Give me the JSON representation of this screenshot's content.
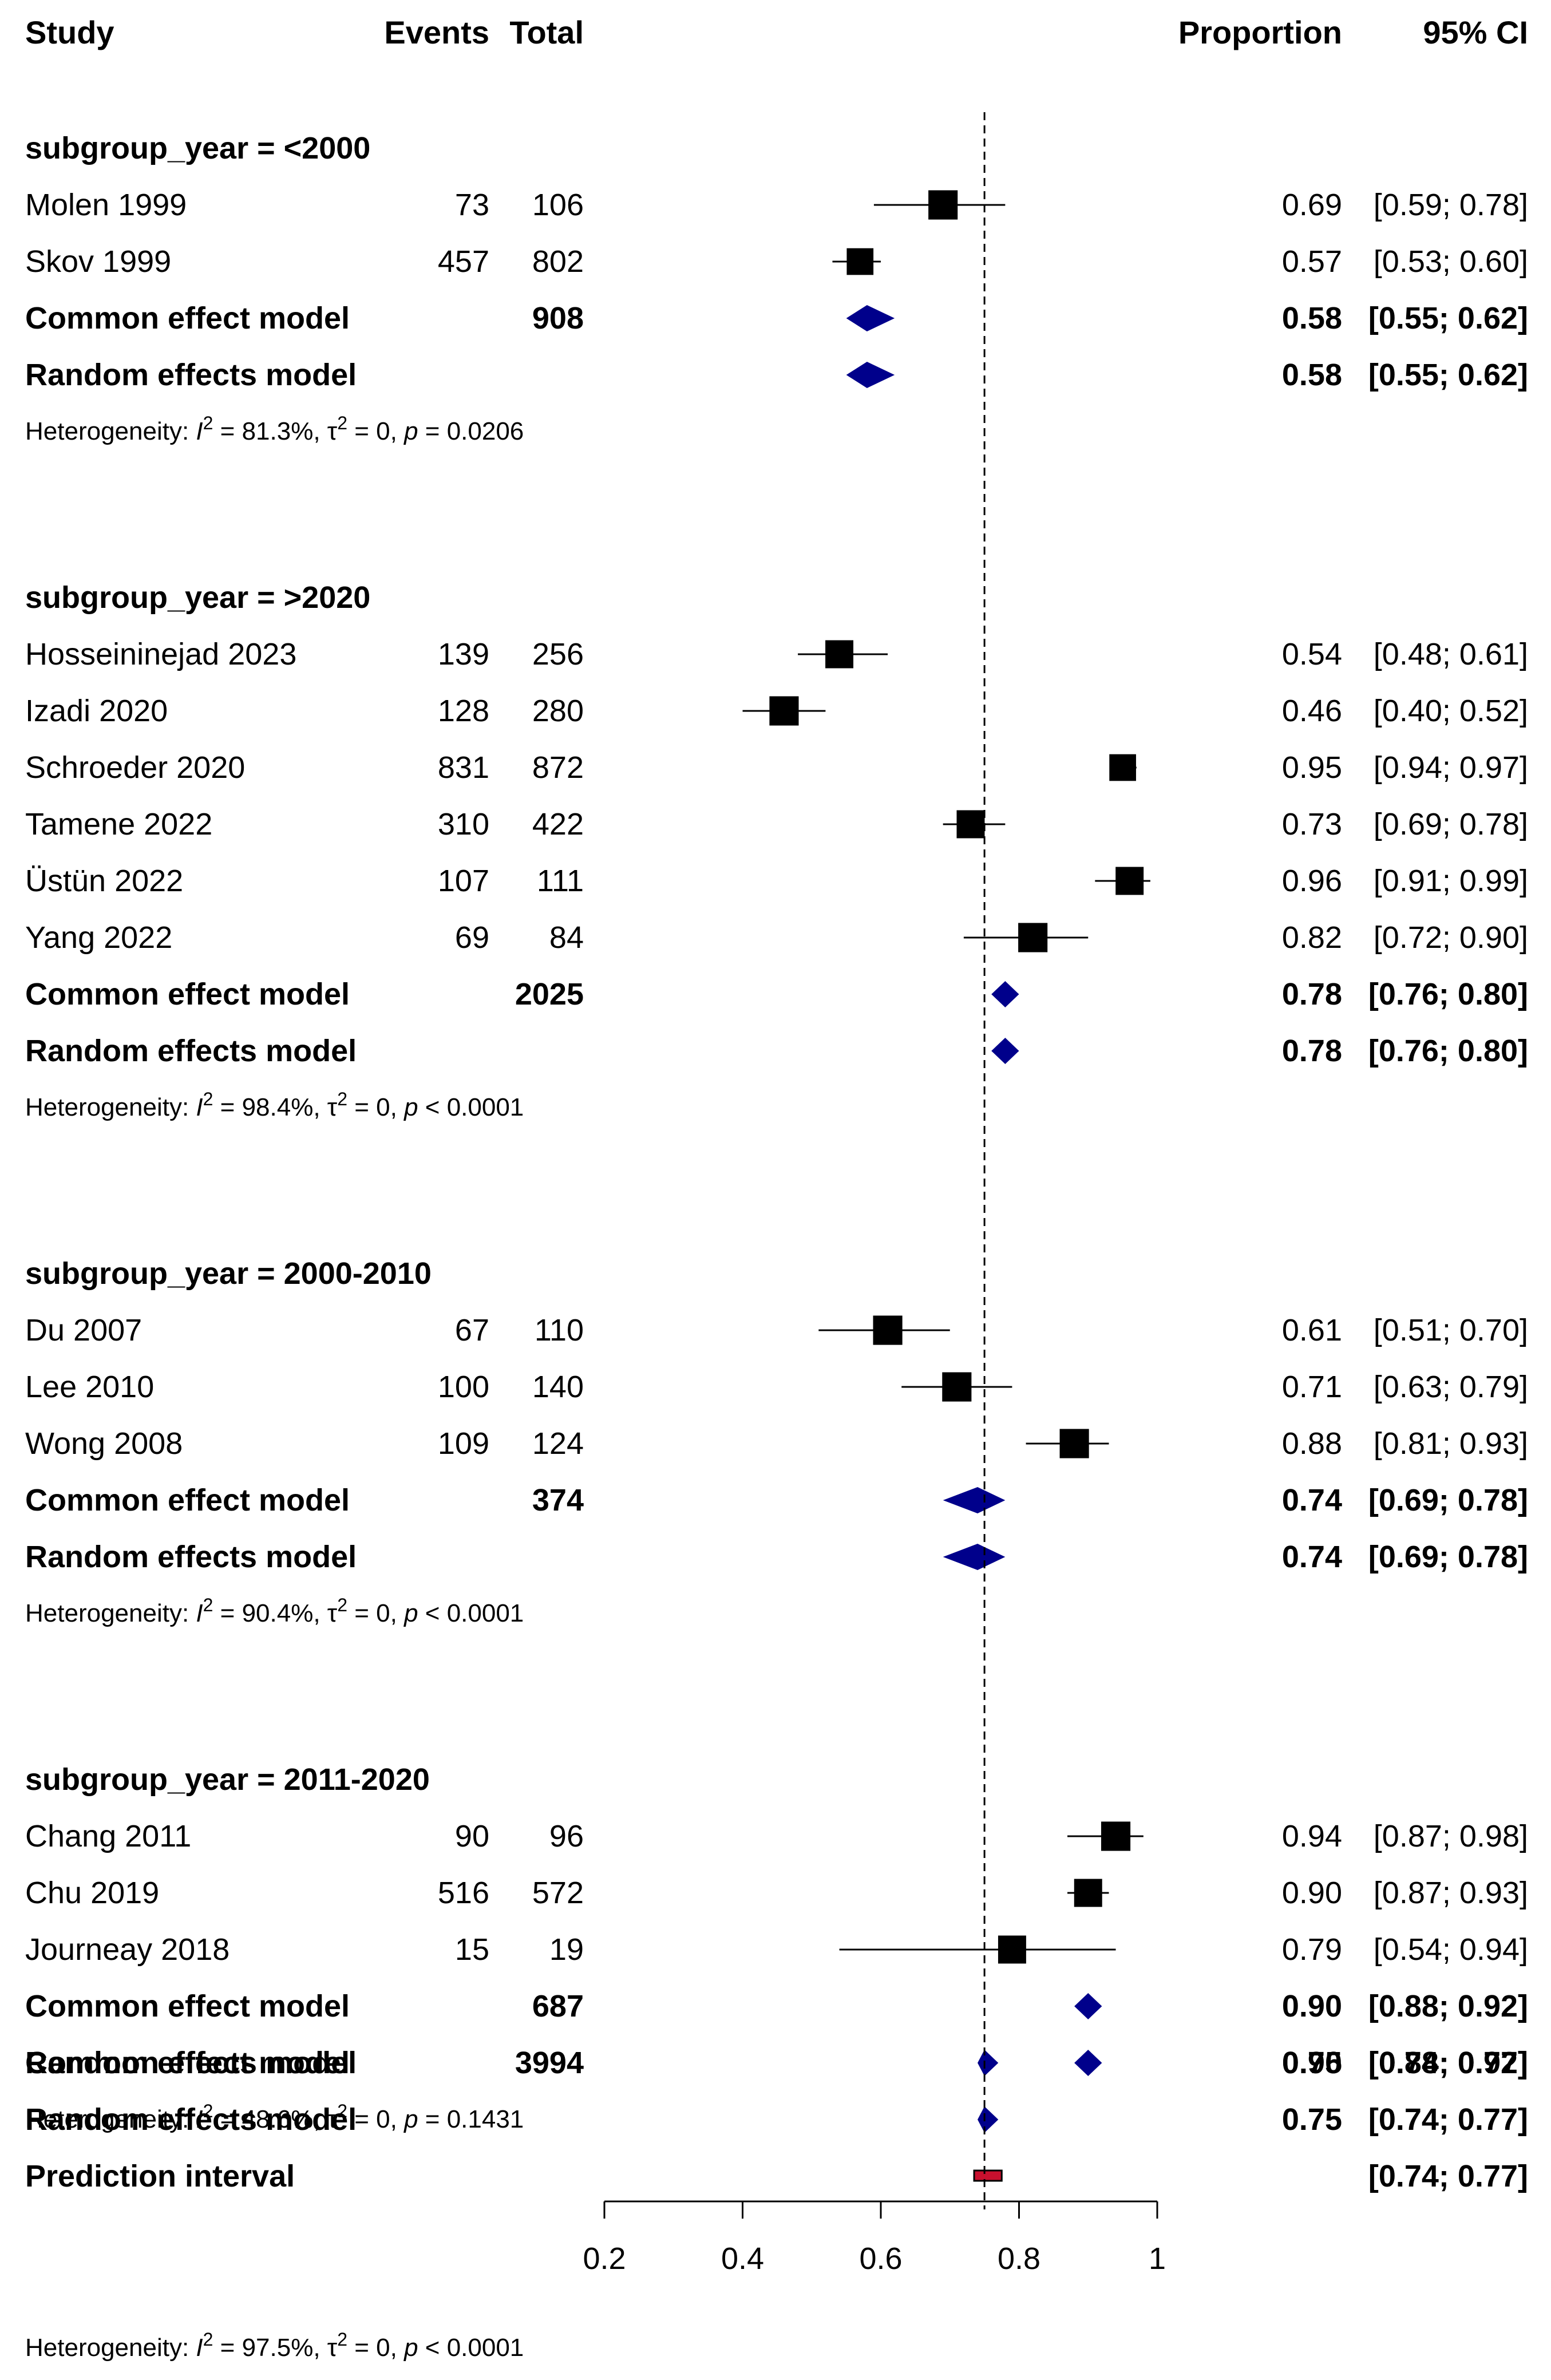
{
  "chart_data": {
    "type": "forest",
    "columns": {
      "study": "Study",
      "events": "Events",
      "total": "Total",
      "proportion": "Proportion",
      "ci": "95% CI"
    },
    "axis": {
      "min": 0.2,
      "max": 1,
      "ticks": [
        "0.2",
        "0.4",
        "0.6",
        "0.8",
        "1"
      ],
      "reference_line": 0.75
    },
    "subgroups": [
      {
        "title": "subgroup_year = <2000",
        "studies": [
          {
            "name": "Molen 1999",
            "events": "73",
            "total": "106",
            "est": 0.69,
            "lo": 0.59,
            "hi": 0.78,
            "est_text": "0.69",
            "ci_text": "[0.59; 0.78]",
            "weight": 0.6
          },
          {
            "name": "Skov 1999",
            "events": "457",
            "total": "802",
            "est": 0.57,
            "lo": 0.53,
            "hi": 0.6,
            "est_text": "0.57",
            "ci_text": "[0.53; 0.60]",
            "weight": 0.5
          }
        ],
        "common": {
          "label": "Common effect model",
          "total": "908",
          "est": 0.58,
          "lo": 0.55,
          "hi": 0.62,
          "est_text": "0.58",
          "ci_text": "[0.55; 0.62]"
        },
        "random": {
          "label": "Random effects model",
          "est": 0.58,
          "lo": 0.55,
          "hi": 0.62,
          "est_text": "0.58",
          "ci_text": "[0.55; 0.62]"
        },
        "het": {
          "prefix": "Heterogeneity: ",
          "i2": "I",
          "i2sup": "2",
          "i2val": " = 81.3%, ",
          "tau": "τ",
          "tausup": "2",
          "tauval": " = 0, ",
          "p": "p",
          "pval": " = 0.0206"
        }
      },
      {
        "title": "subgroup_year = >2020",
        "studies": [
          {
            "name": "Hosseininejad 2023",
            "events": "139",
            "total": "256",
            "est": 0.54,
            "lo": 0.48,
            "hi": 0.61,
            "est_text": "0.54",
            "ci_text": "[0.48; 0.61]",
            "weight": 0.55
          },
          {
            "name": "Izadi 2020",
            "events": "128",
            "total": "280",
            "est": 0.46,
            "lo": 0.4,
            "hi": 0.52,
            "est_text": "0.46",
            "ci_text": "[0.40; 0.52]",
            "weight": 0.6
          },
          {
            "name": "Schroeder 2020",
            "events": "831",
            "total": "872",
            "est": 0.95,
            "lo": 0.94,
            "hi": 0.97,
            "est_text": "0.95",
            "ci_text": "[0.94; 0.97]",
            "weight": 0.5
          },
          {
            "name": "Tamene 2022",
            "events": "310",
            "total": "422",
            "est": 0.73,
            "lo": 0.69,
            "hi": 0.78,
            "est_text": "0.73",
            "ci_text": "[0.69; 0.78]",
            "weight": 0.55
          },
          {
            "name": "Üstün 2022",
            "events": "107",
            "total": "111",
            "est": 0.96,
            "lo": 0.91,
            "hi": 0.99,
            "est_text": "0.96",
            "ci_text": "[0.91; 0.99]",
            "weight": 0.55
          },
          {
            "name": "Yang 2022",
            "events": "69",
            "total": "84",
            "est": 0.82,
            "lo": 0.72,
            "hi": 0.9,
            "est_text": "0.82",
            "ci_text": "[0.72; 0.90]",
            "weight": 0.6
          }
        ],
        "common": {
          "label": "Common effect model",
          "total": "2025",
          "est": 0.78,
          "lo": 0.76,
          "hi": 0.8,
          "est_text": "0.78",
          "ci_text": "[0.76; 0.80]"
        },
        "random": {
          "label": "Random effects model",
          "est": 0.78,
          "lo": 0.76,
          "hi": 0.8,
          "est_text": "0.78",
          "ci_text": "[0.76; 0.80]"
        },
        "het": {
          "prefix": "Heterogeneity: ",
          "i2": "I",
          "i2sup": "2",
          "i2val": " = 98.4%, ",
          "tau": "τ",
          "tausup": "2",
          "tauval": " = 0, ",
          "p": "p",
          "pval": " < 0.0001"
        }
      },
      {
        "title": "subgroup_year = 2000-2010",
        "studies": [
          {
            "name": "Du 2007",
            "events": "67",
            "total": "110",
            "est": 0.61,
            "lo": 0.51,
            "hi": 0.7,
            "est_text": "0.61",
            "ci_text": "[0.51; 0.70]",
            "weight": 0.6
          },
          {
            "name": "Lee 2010",
            "events": "100",
            "total": "140",
            "est": 0.71,
            "lo": 0.63,
            "hi": 0.79,
            "est_text": "0.71",
            "ci_text": "[0.63; 0.79]",
            "weight": 0.6
          },
          {
            "name": "Wong 2008",
            "events": "109",
            "total": "124",
            "est": 0.88,
            "lo": 0.81,
            "hi": 0.93,
            "est_text": "0.88",
            "ci_text": "[0.81; 0.93]",
            "weight": 0.6
          }
        ],
        "common": {
          "label": "Common effect model",
          "total": "374",
          "est": 0.74,
          "lo": 0.69,
          "hi": 0.78,
          "est_text": "0.74",
          "ci_text": "[0.69; 0.78]"
        },
        "random": {
          "label": "Random effects model",
          "est": 0.74,
          "lo": 0.69,
          "hi": 0.78,
          "est_text": "0.74",
          "ci_text": "[0.69; 0.78]"
        },
        "het": {
          "prefix": "Heterogeneity: ",
          "i2": "I",
          "i2sup": "2",
          "i2val": " = 90.4%, ",
          "tau": "τ",
          "tausup": "2",
          "tauval": " = 0, ",
          "p": "p",
          "pval": " < 0.0001"
        }
      },
      {
        "title": "subgroup_year = 2011-2020",
        "studies": [
          {
            "name": "Chang 2011",
            "events": "90",
            "total": "96",
            "est": 0.94,
            "lo": 0.87,
            "hi": 0.98,
            "est_text": "0.94",
            "ci_text": "[0.87; 0.98]",
            "weight": 0.6
          },
          {
            "name": "Chu 2019",
            "events": "516",
            "total": "572",
            "est": 0.9,
            "lo": 0.87,
            "hi": 0.93,
            "est_text": "0.90",
            "ci_text": "[0.87; 0.93]",
            "weight": 0.55
          },
          {
            "name": "Journeay 2018",
            "events": "15",
            "total": "19",
            "est": 0.79,
            "lo": 0.54,
            "hi": 0.94,
            "est_text": "0.79",
            "ci_text": "[0.54; 0.94]",
            "weight": 0.55
          }
        ],
        "common": {
          "label": "Common effect model",
          "total": "687",
          "est": 0.9,
          "lo": 0.88,
          "hi": 0.92,
          "est_text": "0.90",
          "ci_text": "[0.88; 0.92]"
        },
        "random": {
          "label": "Random effects model",
          "est": 0.9,
          "lo": 0.88,
          "hi": 0.92,
          "est_text": "0.90",
          "ci_text": "[0.88; 0.92]"
        },
        "het": {
          "prefix": "Heterogeneity: ",
          "i2": "I",
          "i2sup": "2",
          "i2val": " = 48.6%, ",
          "tau": "τ",
          "tausup": "2",
          "tauval": " = 0, ",
          "p": "p",
          "pval": " = 0.1431"
        }
      }
    ],
    "overall": {
      "common": {
        "label": "Common effect model",
        "total": "3994",
        "est": 0.75,
        "lo": 0.74,
        "hi": 0.77,
        "est_text": "0.75",
        "ci_text": "[0.74; 0.77]"
      },
      "random": {
        "label": "Random effects model",
        "est": 0.75,
        "lo": 0.74,
        "hi": 0.77,
        "est_text": "0.75",
        "ci_text": "[0.74; 0.77]"
      },
      "prediction": {
        "label": "Prediction interval",
        "lo": 0.74,
        "hi": 0.77,
        "ci_text": "[0.74; 0.77]"
      },
      "het": {
        "prefix": "Heterogeneity: ",
        "i2": "I",
        "i2sup": "2",
        "i2val": " = 97.5%, ",
        "tau": "τ",
        "tausup": "2",
        "tauval": " = 0, ",
        "p": "p",
        "pval": " < 0.0001"
      }
    },
    "colors": {
      "square": "#000000",
      "diamond": "#00008B",
      "prediction_fill": "#C8102E",
      "line": "#000000"
    }
  }
}
